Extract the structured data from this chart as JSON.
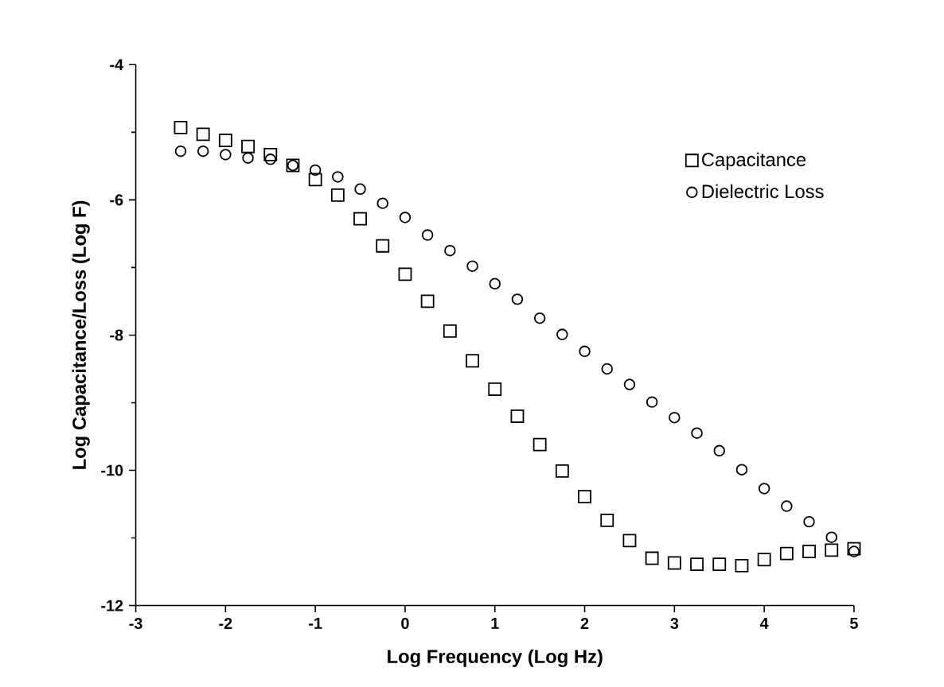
{
  "chart_data": {
    "type": "scatter",
    "xlabel": "Log Frequency (Log Hz)",
    "ylabel": "Log Capacitance/Loss (Log F)",
    "xlim": [
      -3,
      5
    ],
    "ylim": [
      -12,
      -4
    ],
    "xticks": [
      -3,
      -2,
      -1,
      0,
      1,
      2,
      3,
      4,
      5
    ],
    "yticks": [
      -12,
      -10,
      -8,
      -6,
      -4
    ],
    "x": [
      -2.5,
      -2.25,
      -2,
      -1.75,
      -1.5,
      -1.25,
      -1,
      -0.75,
      -0.5,
      -0.25,
      0,
      0.25,
      0.5,
      0.75,
      1,
      1.25,
      1.5,
      1.75,
      2,
      2.25,
      2.5,
      2.75,
      3,
      3.25,
      3.5,
      3.75,
      4,
      4.25,
      4.5,
      4.75,
      5
    ],
    "legend": "top right",
    "grid": false,
    "series": [
      {
        "name": "Capacitance",
        "color": "#000000",
        "marker": "square",
        "values": [
          -4.93,
          -5.03,
          -5.12,
          -5.21,
          -5.33,
          -5.49,
          -5.7,
          -5.93,
          -6.28,
          -6.68,
          -7.1,
          -7.5,
          -7.94,
          -8.38,
          -8.8,
          -9.2,
          -9.62,
          -10.01,
          -10.39,
          -10.74,
          -11.04,
          -11.3,
          -11.37,
          -11.39,
          -11.39,
          -11.41,
          -11.32,
          -11.23,
          -11.2,
          -11.18,
          -11.16
        ]
      },
      {
        "name": "Dielectric Loss",
        "color": "#000000",
        "marker": "circle",
        "values": [
          -5.28,
          -5.28,
          -5.33,
          -5.38,
          -5.4,
          -5.49,
          -5.56,
          -5.66,
          -5.84,
          -6.05,
          -6.26,
          -6.52,
          -6.75,
          -6.98,
          -7.24,
          -7.47,
          -7.75,
          -7.99,
          -8.24,
          -8.5,
          -8.73,
          -8.99,
          -9.22,
          -9.45,
          -9.71,
          -9.99,
          -10.27,
          -10.53,
          -10.76,
          -10.99,
          -11.2
        ]
      }
    ]
  }
}
